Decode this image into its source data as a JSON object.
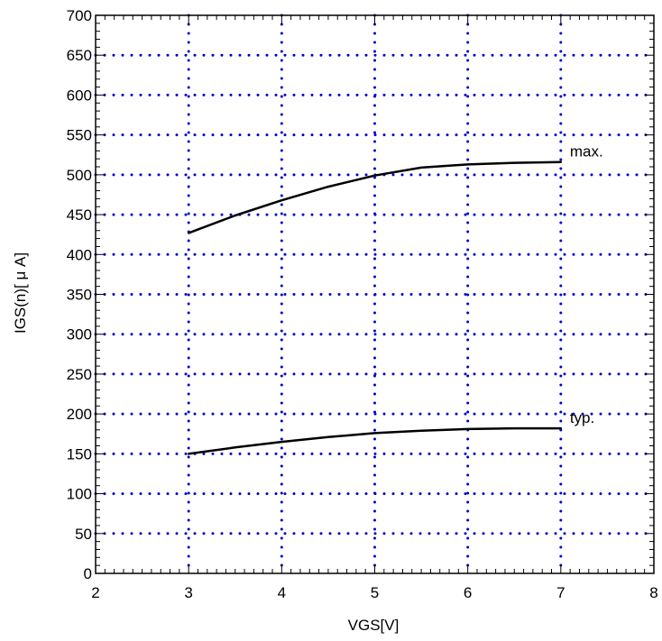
{
  "chart_data": {
    "type": "line",
    "title": "",
    "xlabel": "VGS[V]",
    "ylabel": "IGS(n)[ μ A]",
    "xlim": [
      2,
      8
    ],
    "ylim": [
      0,
      700
    ],
    "xticks": [
      2,
      3,
      4,
      5,
      6,
      7,
      8
    ],
    "yticks": [
      0,
      50,
      100,
      150,
      200,
      250,
      300,
      350,
      400,
      450,
      500,
      550,
      600,
      650,
      700
    ],
    "grid": true,
    "grid_color": "#0000cc",
    "line_color": "#000000",
    "series": [
      {
        "name": "max.",
        "x": [
          3,
          3.5,
          4,
          4.5,
          5,
          5.5,
          6,
          6.5,
          7
        ],
        "y": [
          427,
          449,
          468,
          485,
          499,
          509,
          513,
          515,
          516
        ]
      },
      {
        "name": "typ.",
        "x": [
          3,
          3.5,
          4,
          4.5,
          5,
          5.5,
          6,
          6.5,
          7
        ],
        "y": [
          150,
          158,
          165,
          171,
          176,
          179,
          181,
          182,
          182
        ]
      }
    ]
  }
}
